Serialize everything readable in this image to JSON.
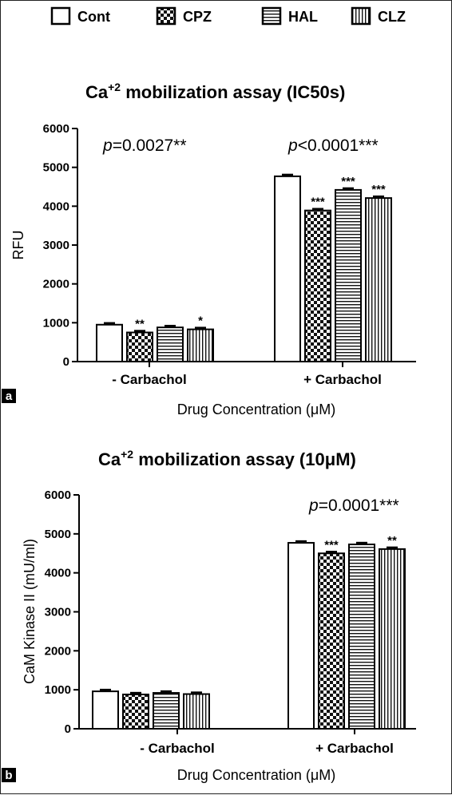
{
  "legend": [
    {
      "label": "Cont",
      "pattern": "cont"
    },
    {
      "label": "CPZ",
      "pattern": "cpz"
    },
    {
      "label": "HAL",
      "pattern": "hal"
    },
    {
      "label": "CLZ",
      "pattern": "clz"
    }
  ],
  "chart_data": [
    {
      "type": "bar",
      "panel": "a",
      "title_main": "Ca",
      "title_sup": "+2",
      "title_rest": " mobilization assay (IC50s)",
      "xlabel": "Drug Concentration (μM)",
      "ylabel": "RFU",
      "ylim": [
        0,
        6000
      ],
      "yticks": [
        0,
        1000,
        2000,
        3000,
        4000,
        5000,
        6000
      ],
      "categories": [
        "- Carbachol",
        "+ Carbachol"
      ],
      "series": [
        {
          "name": "Cont",
          "values": [
            950,
            4770
          ],
          "errors": [
            40,
            40
          ]
        },
        {
          "name": "CPZ",
          "values": [
            750,
            3890
          ],
          "errors": [
            40,
            40
          ]
        },
        {
          "name": "HAL",
          "values": [
            880,
            4420
          ],
          "errors": [
            40,
            40
          ]
        },
        {
          "name": "CLZ",
          "values": [
            830,
            4210
          ],
          "errors": [
            40,
            40
          ]
        }
      ],
      "stars": [
        [
          "",
          "**",
          "",
          "*"
        ],
        [
          "",
          "***",
          "***",
          "***"
        ]
      ],
      "pvalues": [
        {
          "p": "p",
          "rest": "=0.0027**"
        },
        {
          "p": "p",
          "rest": "<0.0001***"
        }
      ]
    },
    {
      "type": "bar",
      "panel": "b",
      "title_main": "Ca",
      "title_sup": "+2",
      "title_rest": " mobilization assay (10μM)",
      "xlabel": "Drug Concentration (μM)",
      "ylabel": "CaM Kinase II  (mU/ml)",
      "ylim": [
        0,
        6000
      ],
      "yticks": [
        0,
        1000,
        2000,
        3000,
        4000,
        5000,
        6000
      ],
      "categories": [
        "- Carbachol",
        "+ Carbachol"
      ],
      "series": [
        {
          "name": "Cont",
          "values": [
            960,
            4770
          ],
          "errors": [
            40,
            40
          ]
        },
        {
          "name": "CPZ",
          "values": [
            880,
            4500
          ],
          "errors": [
            40,
            40
          ]
        },
        {
          "name": "HAL",
          "values": [
            920,
            4730
          ],
          "errors": [
            40,
            40
          ]
        },
        {
          "name": "CLZ",
          "values": [
            890,
            4610
          ],
          "errors": [
            40,
            40
          ]
        }
      ],
      "stars": [
        [
          "",
          "",
          "",
          ""
        ],
        [
          "",
          "***",
          "",
          "**"
        ]
      ],
      "pvalues": [
        null,
        {
          "p": "p",
          "rest": "=0.0001***"
        }
      ]
    }
  ]
}
